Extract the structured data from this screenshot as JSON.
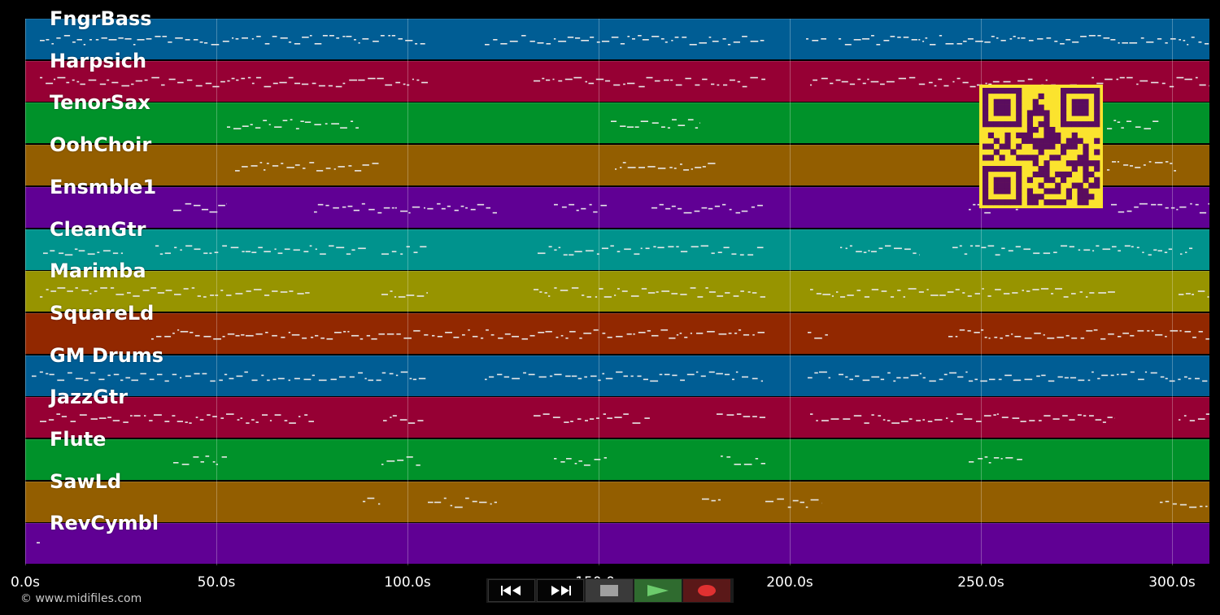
{
  "app": {
    "copyright": "© www.midifiles.com"
  },
  "tracks": [
    {
      "name": "FngrBass",
      "color": "#005d94"
    },
    {
      "name": "Harpsich",
      "color": "#960034"
    },
    {
      "name": "TenorSax",
      "color": "#00922a"
    },
    {
      "name": "OohChoir",
      "color": "#935e00"
    },
    {
      "name": "Ensmble1",
      "color": "#600094"
    },
    {
      "name": "CleanGtr",
      "color": "#00938d"
    },
    {
      "name": "Marimba",
      "color": "#979400"
    },
    {
      "name": "SquareLd",
      "color": "#922800"
    },
    {
      "name": "GM Drums",
      "color": "#005d94"
    },
    {
      "name": "JazzGtr",
      "color": "#960034"
    },
    {
      "name": "Flute",
      "color": "#00922a"
    },
    {
      "name": "SawLd",
      "color": "#935e00"
    },
    {
      "name": "RevCymbl",
      "color": "#600094"
    }
  ],
  "timeline": {
    "max_seconds": 310,
    "ticks": [
      "0.0s",
      "50.0s",
      "100.0s",
      "150.0s",
      "200.0s",
      "250.0s",
      "300.0s"
    ],
    "tick_values": [
      0,
      50,
      100,
      150,
      200,
      250,
      300
    ]
  },
  "transport": {
    "rewind_icon": "rewind-icon",
    "fast_forward_icon": "fast-forward-icon",
    "stop_icon": "stop-icon",
    "play_icon": "play-icon",
    "record_icon": "record-icon"
  },
  "qr": {
    "icon": "qr-code-icon",
    "color_bg": "#fbe32e",
    "color_fg": "#5a0d5e"
  },
  "colors": {
    "note": "#e8e8e8",
    "background": "#000000"
  }
}
